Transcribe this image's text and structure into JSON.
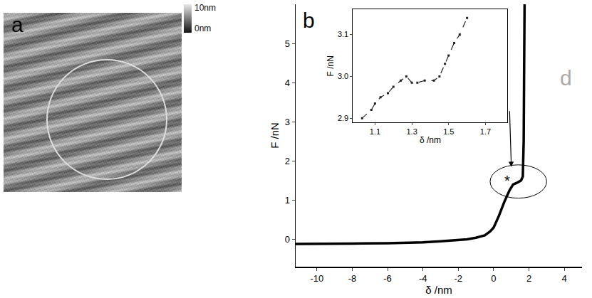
{
  "panel_a": {
    "letter": "a",
    "colorbar_labels": [
      "10nm",
      "0nm"
    ]
  },
  "other_letters": [
    "d"
  ],
  "chart_data": [
    {
      "type": "line",
      "panel": "b",
      "x": [
        -11.2,
        -10,
        -8,
        -6,
        -5,
        -4,
        -3,
        -2,
        -1.5,
        -1,
        -0.5,
        -0.2,
        0,
        0.3,
        0.6,
        0.9,
        1.1,
        1.35,
        1.55,
        1.65,
        1.7,
        1.72,
        1.75
      ],
      "values": [
        -0.12,
        -0.12,
        -0.11,
        -0.1,
        -0.09,
        -0.08,
        -0.05,
        -0.02,
        0.0,
        0.04,
        0.1,
        0.2,
        0.3,
        0.6,
        0.95,
        1.25,
        1.4,
        1.45,
        1.5,
        1.6,
        2.5,
        4.0,
        6.0
      ],
      "xlabel": "δ /nm",
      "ylabel": "F /nN",
      "xlim": [
        -11.2,
        5.0
      ],
      "ylim": [
        -0.7,
        6.0
      ],
      "xticks": [
        -10,
        -8,
        -6,
        -4,
        -2,
        0,
        2,
        4
      ],
      "yticks": [
        0,
        1,
        2,
        3,
        4,
        5
      ],
      "color": "#000000",
      "line_style": "solid",
      "annotations": [
        {
          "text": "*",
          "x": 0.75,
          "y": 1.5
        }
      ]
    },
    {
      "type": "line",
      "x": [
        1.03,
        1.08,
        1.1,
        1.13,
        1.17,
        1.2,
        1.24,
        1.27,
        1.3,
        1.33,
        1.37,
        1.42,
        1.45,
        1.48,
        1.5,
        1.53,
        1.56,
        1.6
      ],
      "values": [
        2.9,
        2.92,
        2.935,
        2.95,
        2.96,
        2.975,
        2.99,
        3.0,
        2.985,
        2.985,
        2.99,
        2.99,
        3.0,
        3.03,
        3.05,
        3.08,
        3.1,
        3.14
      ],
      "xlabel": "δ /nm",
      "ylabel": "F /nN",
      "xlim": [
        0.98,
        1.82
      ],
      "ylim": [
        2.89,
        3.16
      ],
      "xticks": [
        1.1,
        1.3,
        1.5,
        1.7
      ],
      "yticks": [
        2.9,
        {
          "value": 3,
          "label": "3.0"
        },
        3.1
      ],
      "color": "#222222",
      "line_style": "dashed",
      "marker": "square"
    }
  ]
}
